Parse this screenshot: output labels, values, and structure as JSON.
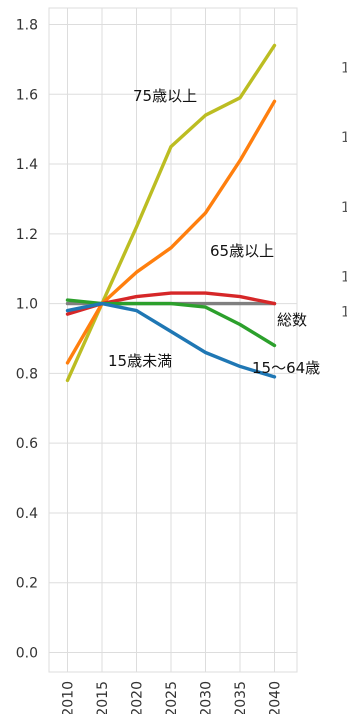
{
  "chart_data": {
    "type": "line",
    "x": [
      "2010",
      "2015",
      "2020",
      "2025",
      "2030",
      "2035",
      "2040"
    ],
    "ylim": [
      0,
      1.8
    ],
    "yticks": [
      "0.0",
      "0.2",
      "0.4",
      "0.6",
      "0.8",
      "1.0",
      "1.2",
      "1.4",
      "1.6",
      "1.8"
    ],
    "grid": true,
    "series": [
      {
        "name": "総数",
        "color": "#808080",
        "values": [
          1.0,
          1.0,
          1.0,
          1.0,
          1.0,
          1.0,
          1.0
        ]
      },
      {
        "name": "75歳以上",
        "color": "#bcbd22",
        "values": [
          0.78,
          1.0,
          1.22,
          1.45,
          1.54,
          1.59,
          1.74
        ]
      },
      {
        "name": "65歳以上",
        "color": "#ff7f0e",
        "values": [
          0.83,
          1.0,
          1.09,
          1.16,
          1.26,
          1.41,
          1.58
        ]
      },
      {
        "name": "",
        "color": "#d62728",
        "values": [
          0.97,
          1.0,
          1.02,
          1.03,
          1.03,
          1.02,
          1.0
        ]
      },
      {
        "name": "15〜64歳",
        "color": "#2ca02c",
        "values": [
          1.01,
          1.0,
          1.0,
          1.0,
          0.99,
          0.94,
          0.88
        ]
      },
      {
        "name": "15歳未満",
        "color": "#1f77b4",
        "values": [
          0.98,
          1.0,
          0.98,
          0.92,
          0.86,
          0.82,
          0.79
        ]
      }
    ],
    "annotations": {
      "a75": "75歳以上",
      "a65": "65歳以上",
      "total": "総数",
      "working": "15〜64歳",
      "child": "15歳未満"
    },
    "right_edge_ticks": [
      "1",
      "1",
      "1",
      "1",
      "1"
    ]
  }
}
